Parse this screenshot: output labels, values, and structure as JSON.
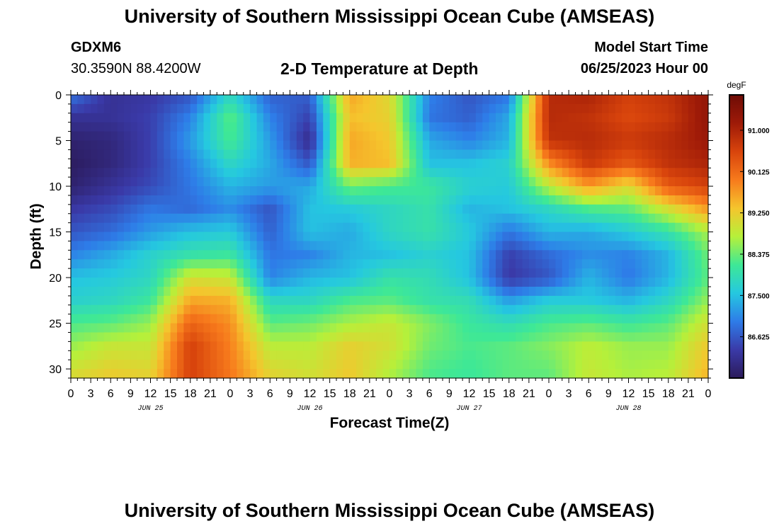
{
  "header": {
    "title": "University of Southern Mississippi Ocean Cube (AMSEAS)",
    "station": "GDXM6",
    "coords": "30.3590N  88.4200W",
    "subtitle": "2-D Temperature at Depth",
    "model_start_label": "Model Start Time",
    "model_start_value": "06/25/2023 Hour 00"
  },
  "footer": {
    "title": "University of Southern Mississippi Ocean Cube (AMSEAS)"
  },
  "chart_data": {
    "type": "heatmap",
    "xlabel": "Forecast Time(Z)",
    "ylabel": "Depth (ft)",
    "x_tick_labels": [
      "0",
      "3",
      "6",
      "9",
      "12",
      "15",
      "18",
      "21",
      "0",
      "3",
      "6",
      "9",
      "12",
      "15",
      "18",
      "21",
      "0",
      "3",
      "6",
      "9",
      "12",
      "15",
      "18",
      "21",
      "0",
      "3",
      "6",
      "9",
      "12",
      "15",
      "18",
      "21",
      "0"
    ],
    "x_hours_range": [
      0,
      96
    ],
    "day_labels": [
      {
        "label": "JUN 25",
        "hour": 12
      },
      {
        "label": "JUN 26",
        "hour": 36
      },
      {
        "label": "JUN 27",
        "hour": 60
      },
      {
        "label": "JUN 28",
        "hour": 84
      }
    ],
    "y_ticks": [
      0,
      5,
      10,
      15,
      20,
      25,
      30
    ],
    "ylim": [
      0,
      31
    ],
    "y_inverted": true,
    "colorbar": {
      "unit": "degF",
      "range": [
        85.75,
        91.75
      ],
      "tick_values": [
        91.0,
        90.125,
        89.25,
        88.375,
        87.5,
        86.625
      ],
      "tick_labels": [
        "91.000",
        "90.125",
        "89.250",
        "88.375",
        "87.500",
        "86.625"
      ],
      "colors": [
        "#2b1a5a",
        "#3a3aa8",
        "#2e7ce8",
        "#25c8e0",
        "#3ee896",
        "#b6f03a",
        "#f5c52d",
        "#f77a1c",
        "#d8440c",
        "#9e1a08",
        "#6e0c06"
      ]
    },
    "grid_hours": [
      0,
      6,
      12,
      18,
      24,
      30,
      36,
      42,
      48,
      54,
      60,
      66,
      72,
      78,
      84,
      90,
      96
    ],
    "grid_depths_ft": [
      0,
      2.5,
      5,
      7.5,
      10,
      12.5,
      15,
      17.5,
      20,
      22.5,
      25,
      27.5,
      31
    ],
    "values": [
      [
        86.9,
        86.2,
        86.3,
        86.6,
        87.8,
        86.7,
        86.7,
        89.6,
        89.1,
        87.0,
        86.6,
        86.9,
        90.9,
        91.0,
        90.6,
        90.8,
        91.3
      ],
      [
        86.2,
        86.2,
        86.4,
        87.0,
        88.3,
        87.0,
        86.4,
        89.4,
        89.2,
        86.9,
        86.7,
        87.3,
        90.9,
        90.8,
        90.5,
        90.7,
        91.3
      ],
      [
        85.9,
        86.0,
        86.4,
        87.2,
        88.2,
        87.2,
        86.1,
        89.6,
        89.3,
        87.3,
        87.0,
        87.4,
        90.8,
        90.9,
        90.7,
        90.9,
        91.2
      ],
      [
        85.8,
        86.0,
        86.4,
        87.0,
        87.8,
        87.3,
        86.6,
        89.5,
        89.4,
        87.5,
        87.5,
        87.7,
        89.8,
        90.7,
        90.3,
        90.8,
        91.0
      ],
      [
        85.9,
        86.2,
        86.5,
        86.9,
        87.4,
        87.2,
        87.3,
        88.4,
        88.2,
        88.1,
        87.7,
        87.6,
        88.8,
        89.7,
        89.1,
        90.3,
        90.6
      ],
      [
        86.3,
        86.5,
        86.9,
        86.8,
        87.1,
        86.6,
        87.5,
        87.6,
        87.8,
        88.0,
        87.4,
        87.5,
        87.8,
        88.2,
        88.3,
        89.0,
        89.7
      ],
      [
        86.6,
        86.8,
        87.2,
        87.5,
        87.6,
        86.7,
        87.5,
        87.3,
        87.8,
        88.0,
        87.6,
        86.9,
        87.4,
        87.3,
        87.6,
        88.0,
        88.7
      ],
      [
        87.0,
        87.3,
        87.7,
        88.0,
        88.1,
        86.9,
        87.0,
        87.4,
        87.5,
        87.7,
        87.5,
        86.4,
        86.8,
        87.1,
        87.0,
        87.4,
        88.4
      ],
      [
        87.5,
        87.6,
        87.8,
        89.0,
        88.9,
        87.0,
        87.4,
        87.5,
        88.0,
        87.9,
        87.5,
        86.3,
        86.6,
        87.4,
        86.9,
        87.4,
        88.3
      ],
      [
        87.7,
        87.8,
        88.1,
        89.6,
        89.5,
        87.8,
        87.8,
        88.2,
        88.3,
        88.0,
        87.9,
        87.2,
        87.6,
        87.6,
        87.4,
        87.8,
        88.6
      ],
      [
        88.2,
        88.3,
        88.6,
        90.2,
        89.8,
        88.3,
        88.4,
        88.7,
        88.9,
        88.5,
        88.1,
        87.9,
        88.2,
        88.3,
        88.1,
        88.3,
        89.0
      ],
      [
        88.6,
        88.9,
        88.9,
        90.6,
        89.9,
        88.8,
        88.8,
        89.2,
        89.0,
        88.4,
        88.2,
        88.3,
        88.5,
        88.8,
        88.6,
        88.6,
        89.3
      ],
      [
        89.1,
        89.3,
        89.2,
        90.6,
        90.0,
        89.2,
        89.0,
        89.3,
        88.7,
        88.2,
        88.1,
        88.3,
        88.3,
        88.9,
        88.7,
        88.8,
        89.5
      ]
    ]
  }
}
